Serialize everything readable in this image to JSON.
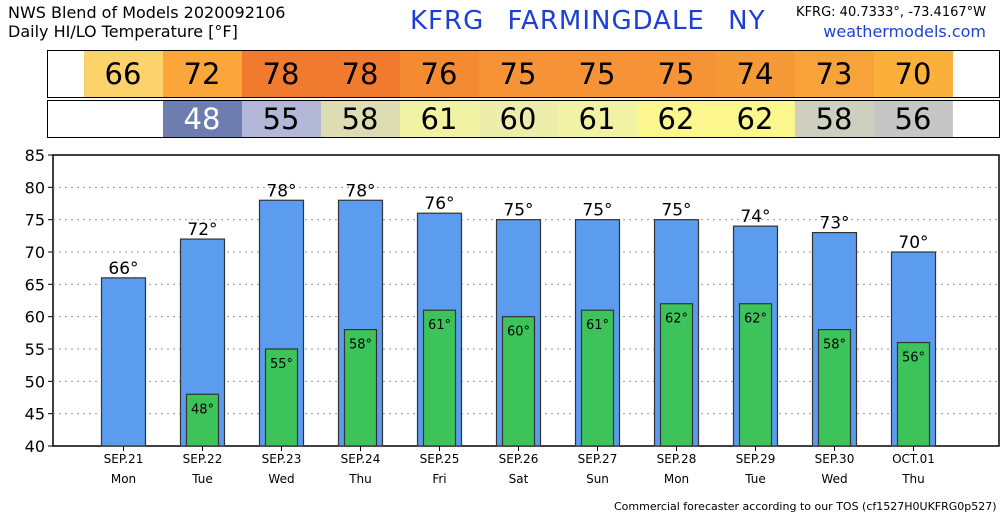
{
  "header": {
    "line1": "NWS Blend of Models 2020092106",
    "line2": "Daily HI/LO Temperature [°F]",
    "station": "KFRG  FARMINGDALE    NY",
    "coords": "KFRG: 40.7333°, -73.4167°W",
    "site": "weathermodels.com"
  },
  "footer": "Commercial forecaster according to our TOS (cf1527H0UKFRG0p527)",
  "strips": {
    "hi": [
      {
        "value": "66",
        "color": "#fcd36a"
      },
      {
        "value": "72",
        "color": "#faa63a"
      },
      {
        "value": "78",
        "color": "#f07a2e"
      },
      {
        "value": "78",
        "color": "#f07a2e"
      },
      {
        "value": "76",
        "color": "#f48a32"
      },
      {
        "value": "75",
        "color": "#f59336"
      },
      {
        "value": "75",
        "color": "#f59336"
      },
      {
        "value": "75",
        "color": "#f59336"
      },
      {
        "value": "74",
        "color": "#f69a38"
      },
      {
        "value": "73",
        "color": "#f8a23a"
      },
      {
        "value": "70",
        "color": "#fbb03c"
      }
    ],
    "lo": [
      {
        "value": "",
        "color": "#ffffff",
        "text_color": "#000000"
      },
      {
        "value": "48",
        "color": "#6e7db0",
        "text_color": "#ffffff"
      },
      {
        "value": "55",
        "color": "#b4b8d8",
        "text_color": "#000000"
      },
      {
        "value": "58",
        "color": "#dedcb2",
        "text_color": "#000000"
      },
      {
        "value": "61",
        "color": "#f2f2a4",
        "text_color": "#000000"
      },
      {
        "value": "60",
        "color": "#eeeeac",
        "text_color": "#000000"
      },
      {
        "value": "61",
        "color": "#f2f2a4",
        "text_color": "#000000"
      },
      {
        "value": "62",
        "color": "#fbf78e",
        "text_color": "#000000"
      },
      {
        "value": "62",
        "color": "#fbf78e",
        "text_color": "#000000"
      },
      {
        "value": "58",
        "color": "#cfcfc0",
        "text_color": "#000000"
      },
      {
        "value": "56",
        "color": "#c6c6c6",
        "text_color": "#000000"
      }
    ]
  },
  "chart_data": {
    "type": "bar",
    "categories": [
      "SEP.21",
      "SEP.22",
      "SEP.23",
      "SEP.24",
      "SEP.25",
      "SEP.26",
      "SEP.27",
      "SEP.28",
      "SEP.29",
      "SEP.30",
      "OCT.01"
    ],
    "weekdays": [
      "Mon",
      "Tue",
      "Wed",
      "Thu",
      "Fri",
      "Sat",
      "Sun",
      "Mon",
      "Tue",
      "Wed",
      "Thu"
    ],
    "series": [
      {
        "values": [
          66,
          72,
          78,
          78,
          76,
          75,
          75,
          75,
          74,
          73,
          70
        ],
        "labels": [
          "66°",
          "72°",
          "78°",
          "78°",
          "76°",
          "75°",
          "75°",
          "75°",
          "74°",
          "73°",
          "70°"
        ],
        "color": "#5c9cee"
      },
      {
        "values": [
          null,
          48,
          55,
          58,
          61,
          60,
          61,
          62,
          62,
          58,
          56
        ],
        "labels": [
          "",
          "48°",
          "55°",
          "58°",
          "61°",
          "60°",
          "61°",
          "62°",
          "62°",
          "58°",
          "56°"
        ],
        "color": "#3cc45a"
      }
    ],
    "ylim": [
      40,
      85
    ],
    "yticks": [
      "40",
      "45",
      "50",
      "55",
      "60",
      "65",
      "70",
      "75",
      "80",
      "85"
    ],
    "grid": true
  }
}
